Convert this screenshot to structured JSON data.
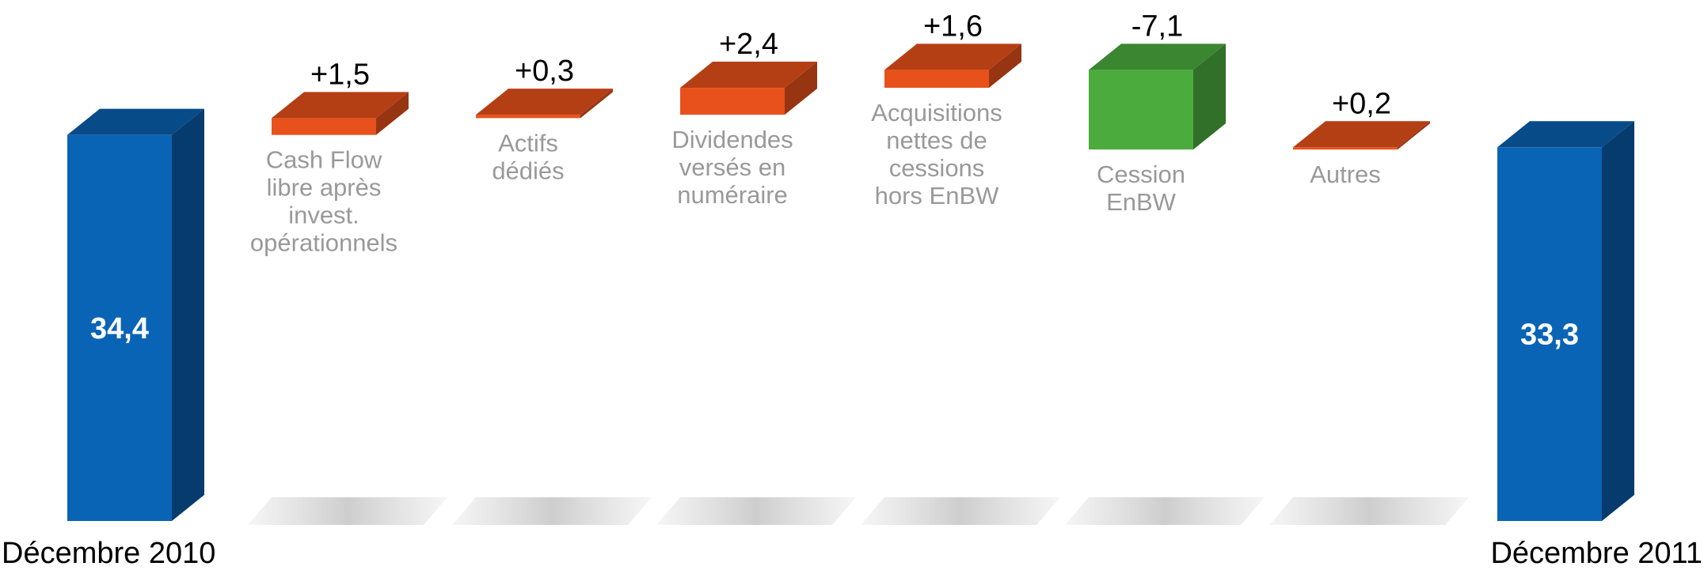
{
  "chart_data": {
    "type": "waterfall",
    "categories": [
      "Décembre 2010",
      "Cash Flow\nlibre après\ninvest.\nopérationnels",
      "Actifs\ndédiés",
      "Dividendes\nversés en\nnuméraire",
      "Acquisitions\nnettes de\ncessions\nhors EnBW",
      "Cession\nEnBW",
      "Autres",
      "Décembre 2011"
    ],
    "values": [
      34.4,
      1.5,
      0.3,
      2.4,
      1.6,
      -7.1,
      0.2,
      33.3
    ],
    "value_labels": [
      "34,4",
      "+1,5",
      "+0,3",
      "+2,4",
      "+1,6",
      "-7,1",
      "+0,2",
      "33,3"
    ],
    "colors": {
      "total": "#0a64b6",
      "increase": "#e8511b",
      "decrease": "#4bac3d"
    },
    "ylim": [
      0,
      46
    ]
  }
}
